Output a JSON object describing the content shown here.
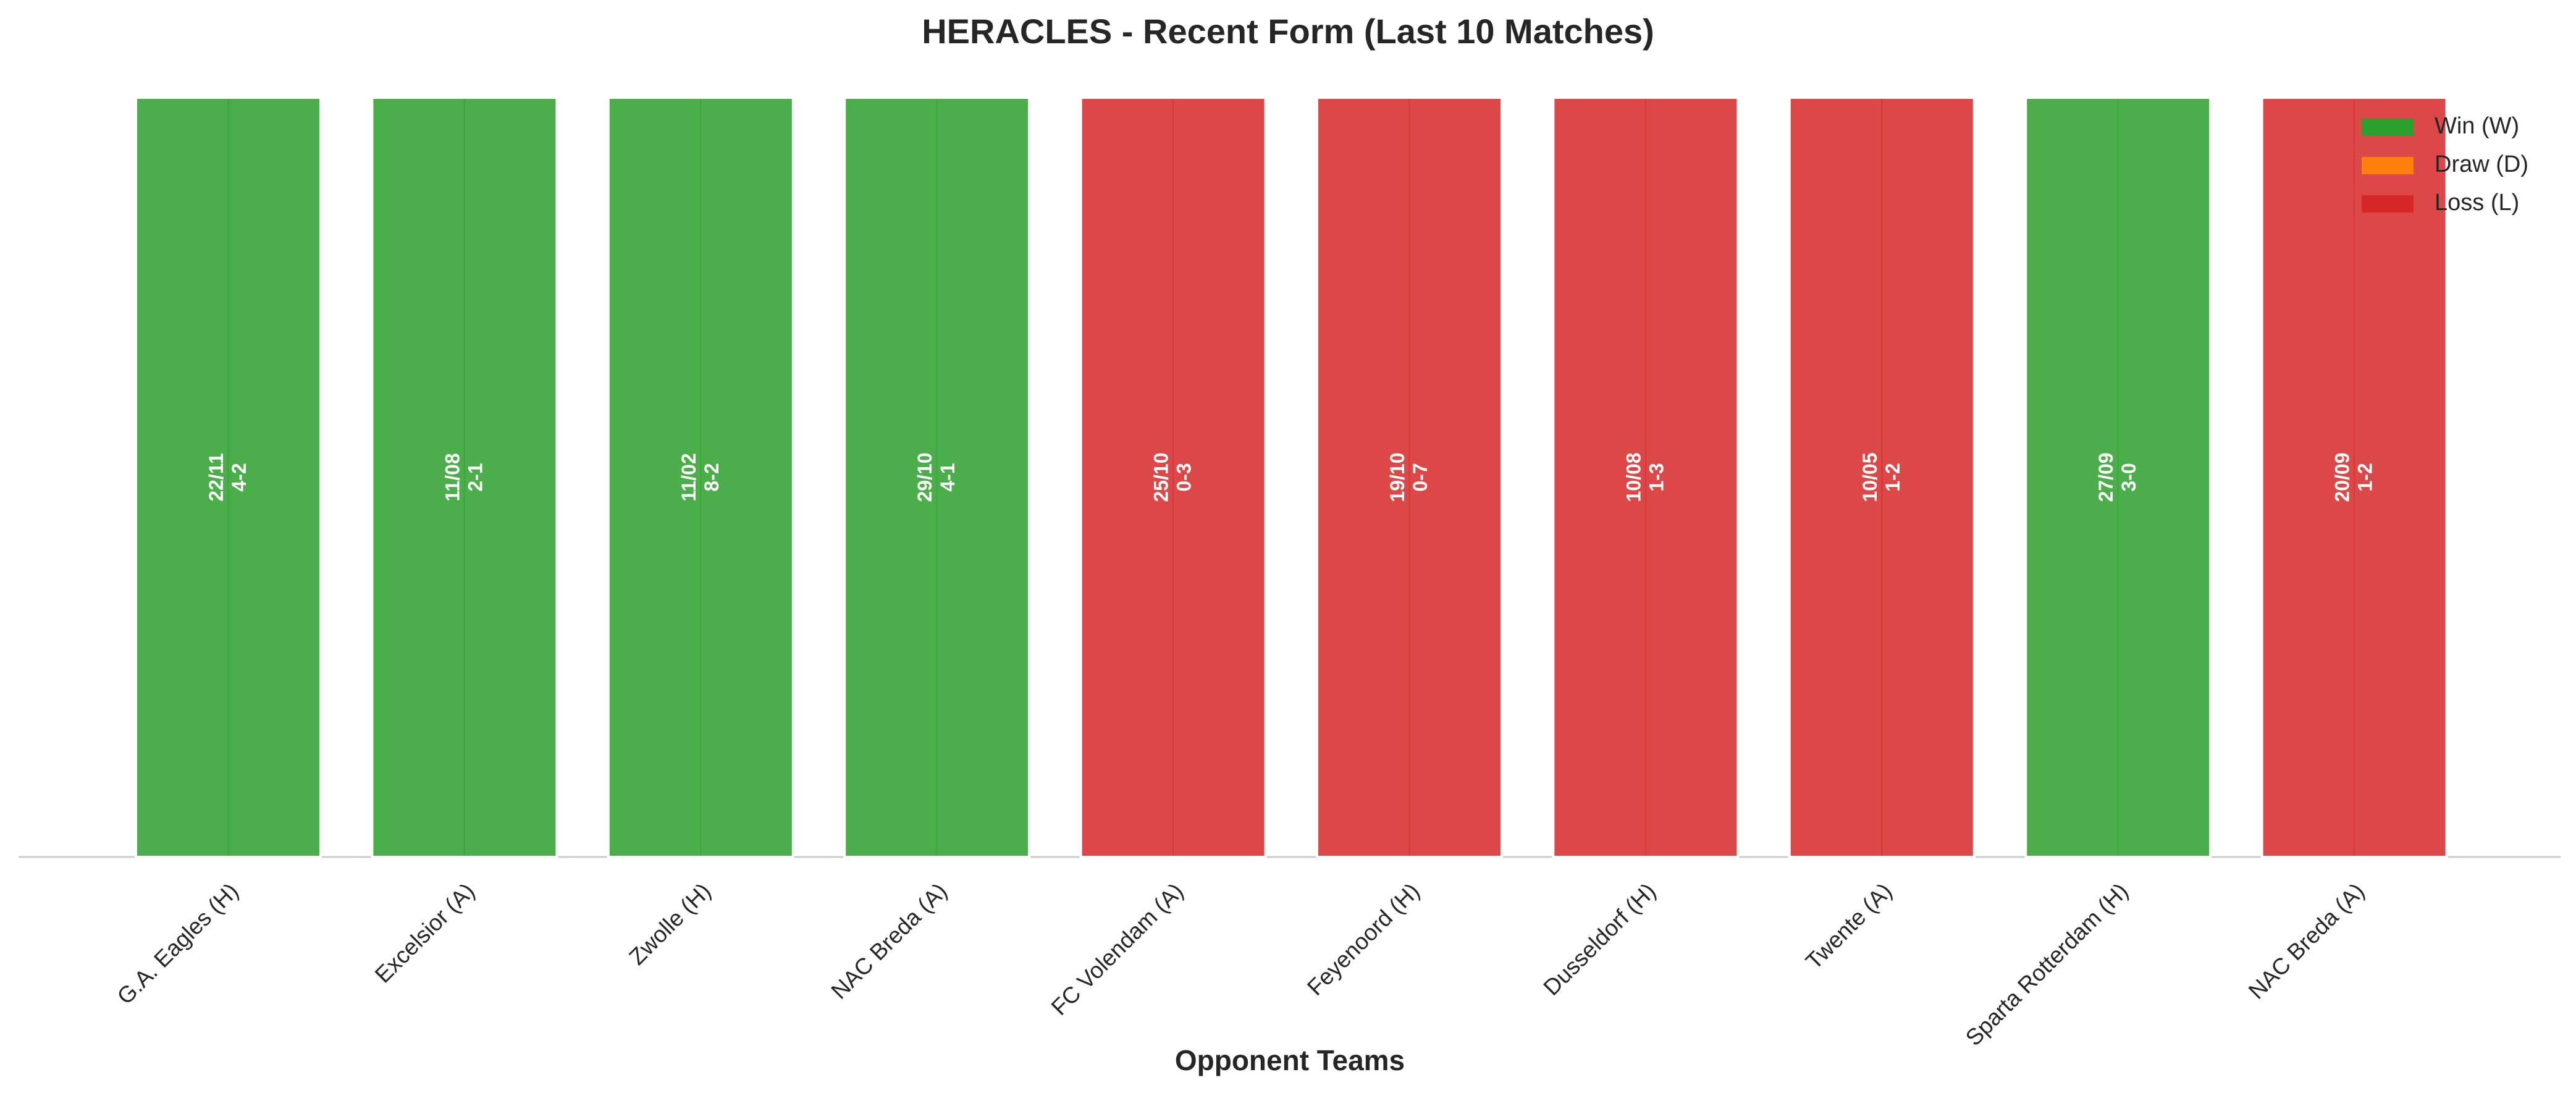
{
  "chart_data": {
    "type": "bar",
    "title": "HERACLES - Recent Form (Last 10 Matches)",
    "xlabel": "Opponent Teams",
    "ylabel": "",
    "ylim": [
      0,
      1
    ],
    "grid": false,
    "legend_position": "top-right",
    "legend": [
      {
        "label": "Win (W)",
        "color": "#2ca02c"
      },
      {
        "label": "Draw (D)",
        "color": "#ff7f0e"
      },
      {
        "label": "Loss (L)",
        "color": "#d62728"
      }
    ],
    "categories": [
      "G.A. Eagles (H)",
      "Excelsior (A)",
      "Zwolle (H)",
      "NAC Breda (A)",
      "FC Volendam (A)",
      "Feyenoord (H)",
      "Dusseldorf (H)",
      "Twente (A)",
      "Sparta Rotterdam (H)",
      "NAC Breda (A)"
    ],
    "values": [
      1,
      1,
      1,
      1,
      1,
      1,
      1,
      1,
      1,
      1
    ],
    "results": [
      "W",
      "W",
      "W",
      "W",
      "L",
      "L",
      "L",
      "L",
      "W",
      "L"
    ],
    "dates": [
      "22/11",
      "11/08",
      "11/02",
      "29/10",
      "25/10",
      "19/10",
      "10/08",
      "10/05",
      "27/09",
      "20/09"
    ],
    "scores": [
      "4-2",
      "2-1",
      "8-2",
      "4-1",
      "0-3",
      "0-7",
      "1-3",
      "1-2",
      "3-0",
      "1-2"
    ]
  }
}
